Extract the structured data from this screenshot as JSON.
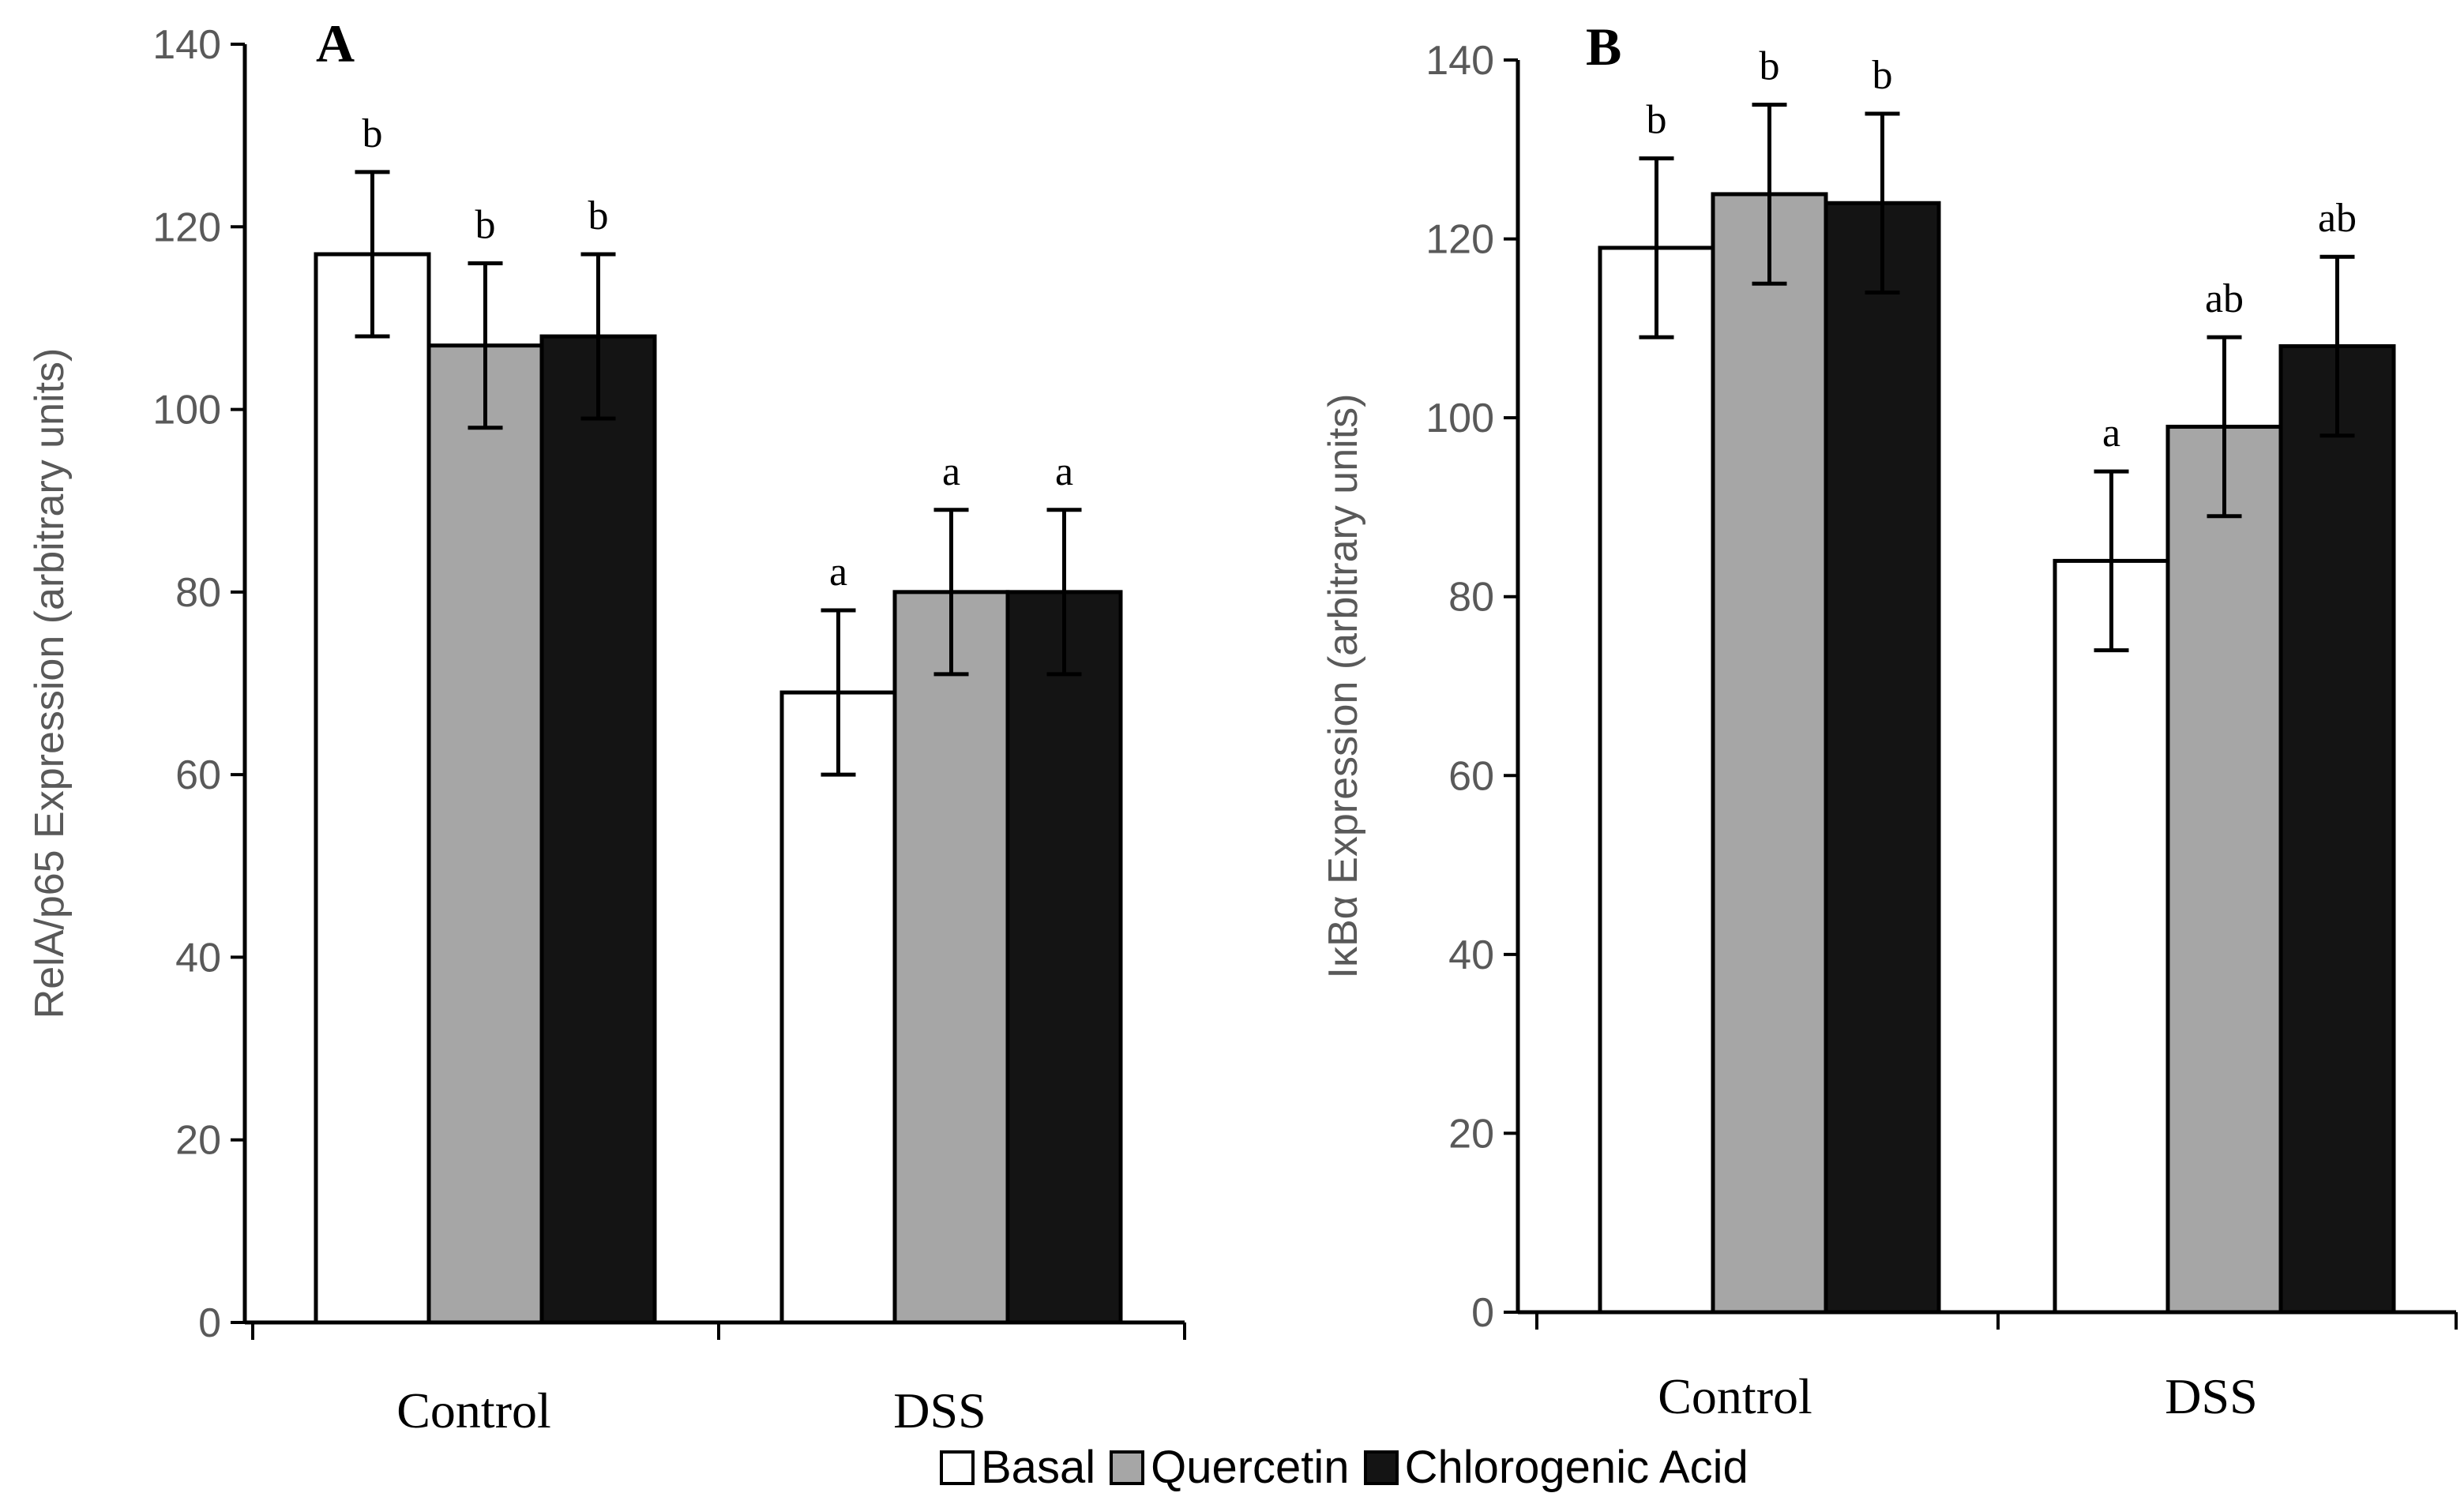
{
  "chart_data": [
    {
      "type": "bar",
      "panel": "A",
      "ylabel": "RelA/p65 Expression (arbitrary units)",
      "xlabel": "",
      "ylim": [
        0,
        140
      ],
      "yticks": [
        0,
        20,
        40,
        60,
        80,
        100,
        120,
        140
      ],
      "tick_labels": [
        "0",
        "20",
        "40",
        "60",
        "80",
        "100",
        "120",
        "140"
      ],
      "categories": [
        "Control",
        "DSS"
      ],
      "series": [
        {
          "name": "Basal",
          "values": [
            117,
            69
          ],
          "errors": [
            9,
            9
          ],
          "letters": [
            "b",
            "a"
          ],
          "color": "#ffffff"
        },
        {
          "name": "Quercetin",
          "values": [
            107,
            80
          ],
          "errors": [
            9,
            9
          ],
          "letters": [
            "b",
            "a"
          ],
          "color": "#a6a6a6"
        },
        {
          "name": "Chlorogenic Acid",
          "values": [
            108,
            80
          ],
          "errors": [
            9,
            9
          ],
          "letters": [
            "b",
            "a"
          ],
          "color": "#141414"
        }
      ]
    },
    {
      "type": "bar",
      "panel": "B",
      "ylabel": "IκBα Expression (arbitrary units)",
      "xlabel": "",
      "ylim": [
        0,
        140
      ],
      "yticks": [
        0,
        20,
        40,
        60,
        80,
        100,
        120,
        140
      ],
      "tick_labels": [
        "0",
        "20",
        "40",
        "60",
        "80",
        "100",
        "120",
        "140"
      ],
      "categories": [
        "Control",
        "DSS"
      ],
      "series": [
        {
          "name": "Basal",
          "values": [
            119,
            84
          ],
          "errors": [
            10,
            10
          ],
          "letters": [
            "b",
            "a"
          ],
          "color": "#ffffff"
        },
        {
          "name": "Quercetin",
          "values": [
            125,
            99
          ],
          "errors": [
            10,
            10
          ],
          "letters": [
            "b",
            "ab"
          ],
          "color": "#a6a6a6"
        },
        {
          "name": "Chlorogenic Acid",
          "values": [
            124,
            108
          ],
          "errors": [
            10,
            10
          ],
          "letters": [
            "b",
            "ab"
          ],
          "color": "#141414"
        }
      ]
    }
  ],
  "legend": {
    "items": [
      {
        "name": "Basal",
        "color": "#ffffff"
      },
      {
        "name": "Quercetin",
        "color": "#a6a6a6"
      },
      {
        "name": "Chlorogenic Acid",
        "color": "#141414"
      }
    ]
  }
}
